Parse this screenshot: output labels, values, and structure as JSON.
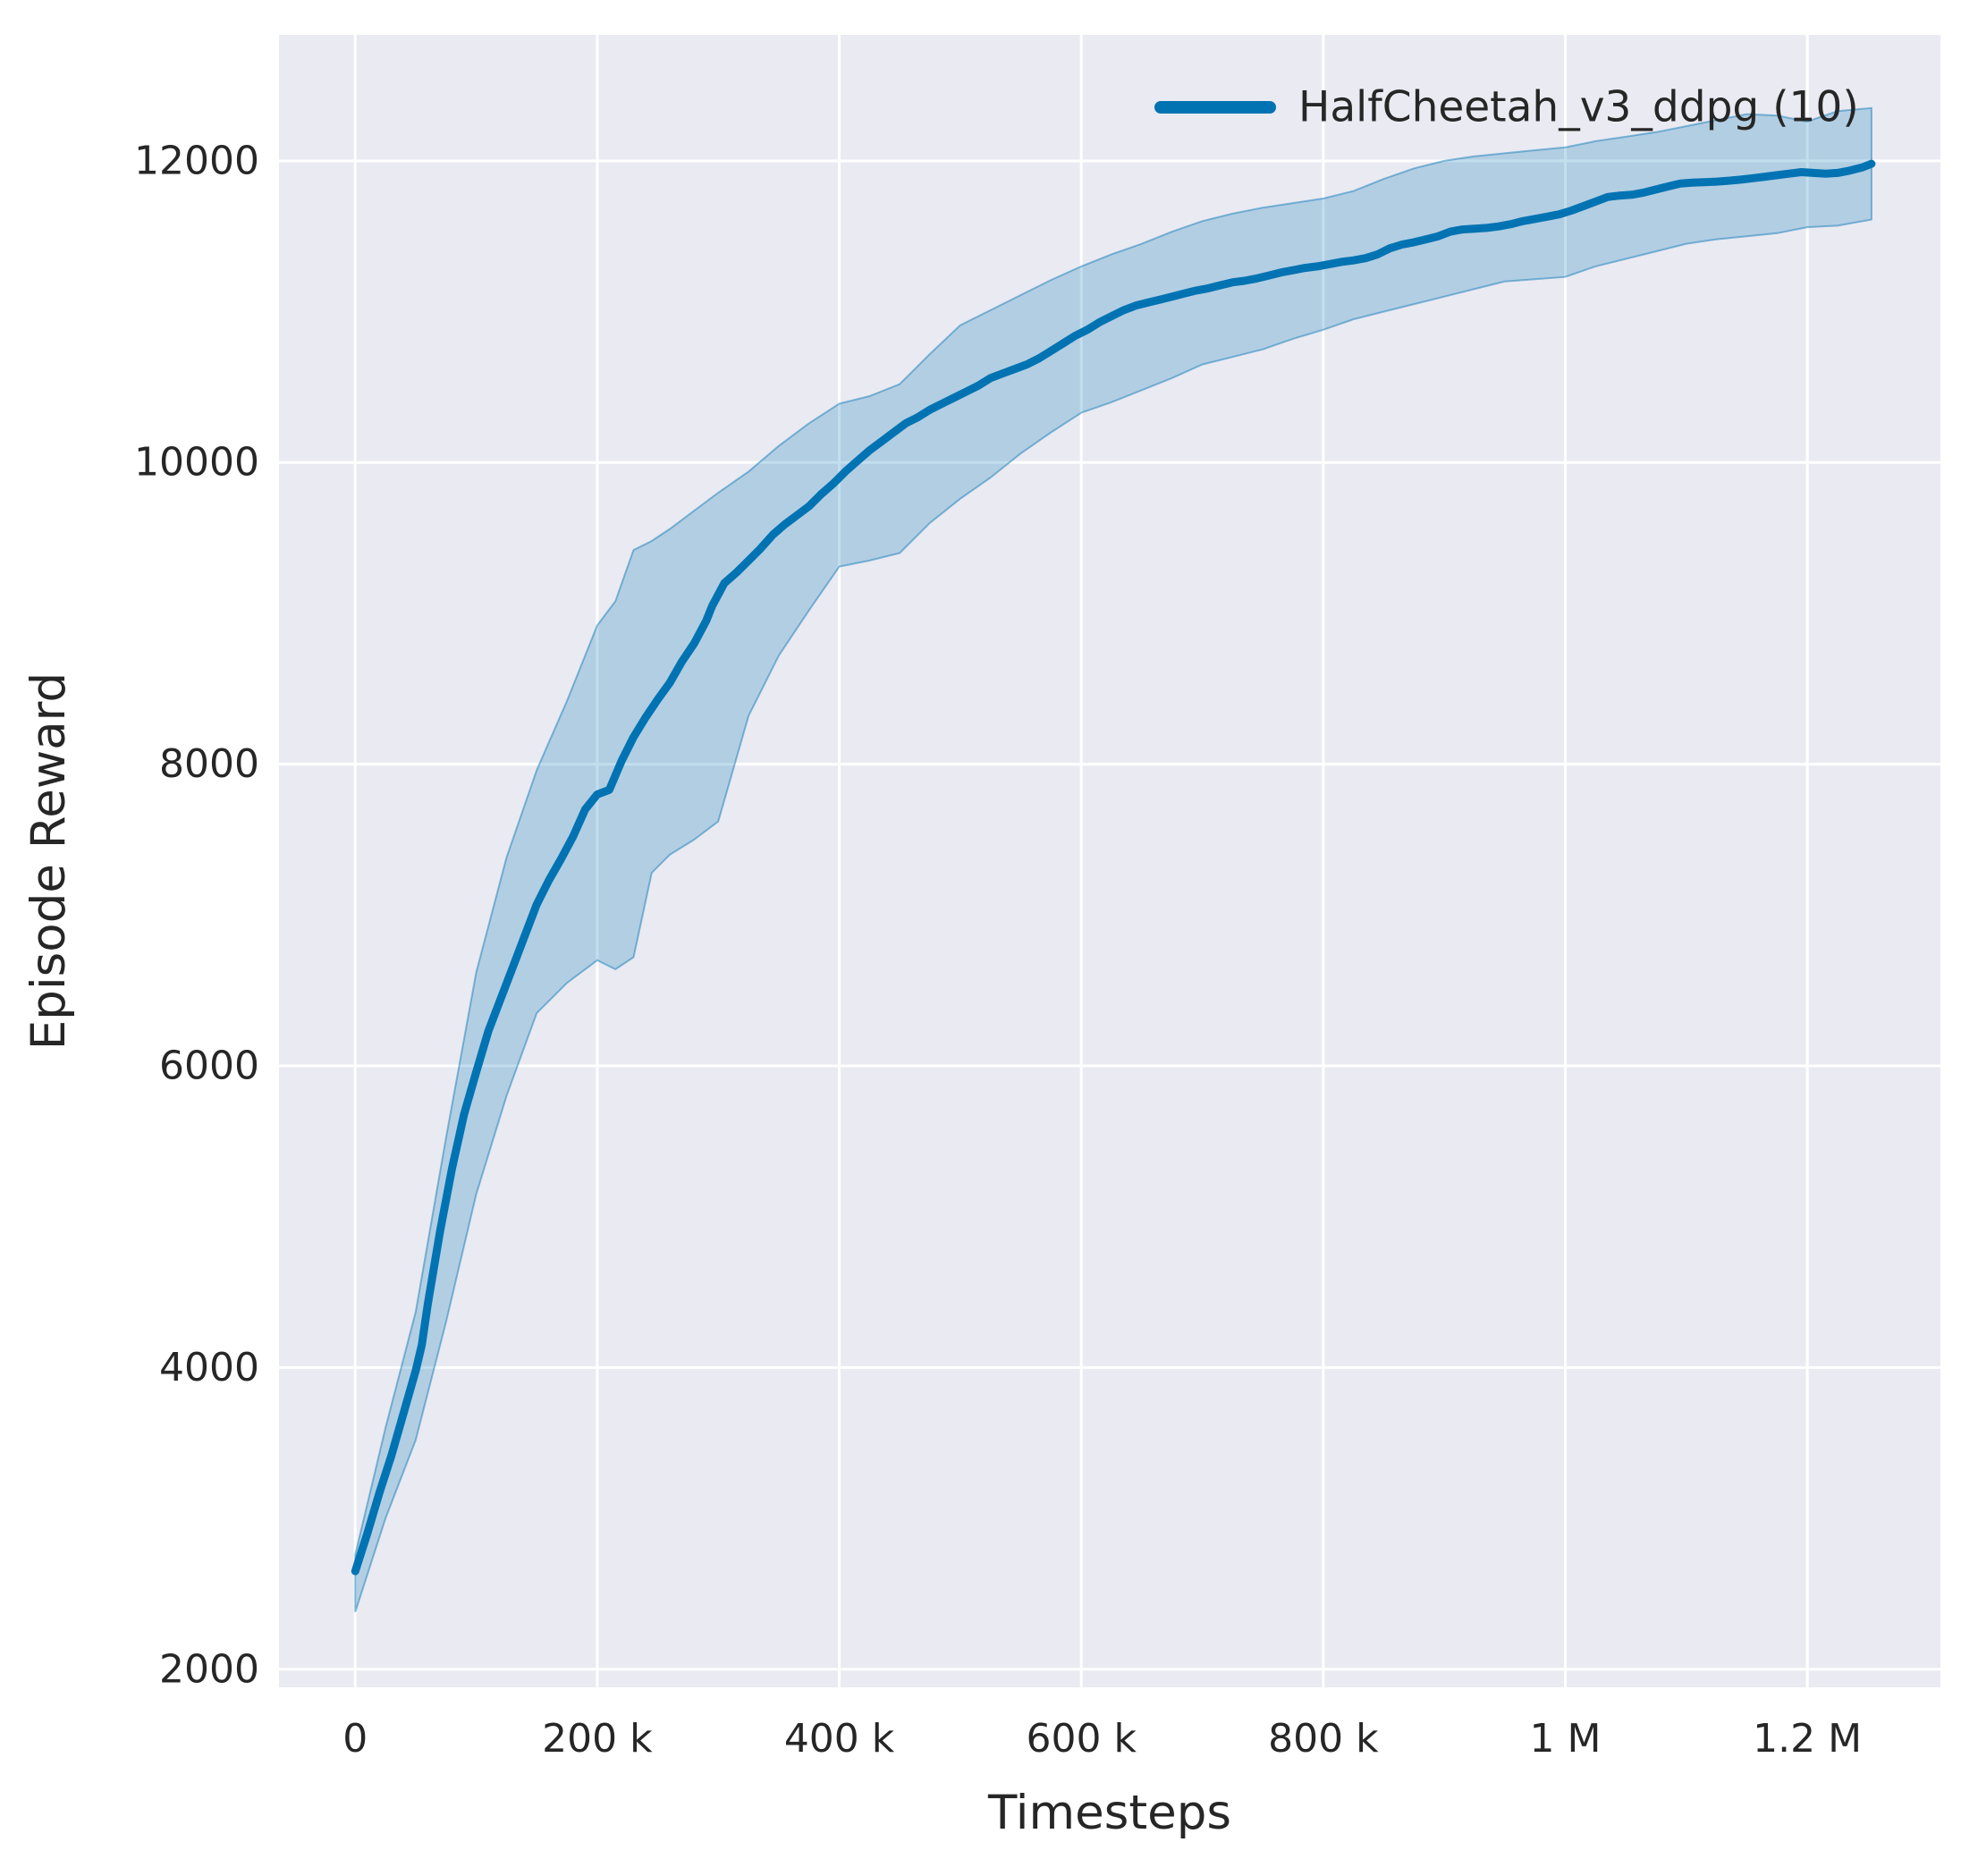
{
  "figure": {
    "background": "#ffffff",
    "plot_background": "#eaeaf2",
    "grid_color": "#ffffff",
    "text_color": "#262626"
  },
  "chart_data": {
    "type": "line",
    "title": "",
    "xlabel": "Timesteps",
    "ylabel": "Episode Reward",
    "grid": true,
    "legend_position": "upper right",
    "xlim": [
      -63000,
      1310000
    ],
    "ylim": [
      1880,
      12835
    ],
    "x_ticks": {
      "values": [
        0,
        200000,
        400000,
        600000,
        800000,
        1000000,
        1200000
      ],
      "labels": [
        "0",
        "200 k",
        "400 k",
        "600 k",
        "800 k",
        "1 M",
        "1.2 M"
      ]
    },
    "y_ticks": {
      "values": [
        2000,
        4000,
        6000,
        8000,
        10000,
        12000
      ],
      "labels": [
        "2000",
        "4000",
        "6000",
        "8000",
        "10000",
        "12000"
      ]
    },
    "series": [
      {
        "name": "HalfCheetah_v3_ddpg (10)",
        "color": "#0173b2",
        "line_width": 9,
        "x": [
          0,
          10000,
          20000,
          30000,
          40000,
          50000,
          55000,
          60000,
          70000,
          80000,
          90000,
          100000,
          110000,
          120000,
          130000,
          140000,
          150000,
          160000,
          170000,
          180000,
          190000,
          200000,
          210000,
          220000,
          230000,
          240000,
          250000,
          260000,
          270000,
          280000,
          290000,
          295000,
          305000,
          315000,
          325000,
          335000,
          345000,
          355000,
          365000,
          375000,
          385000,
          395000,
          405000,
          415000,
          425000,
          435000,
          445000,
          455000,
          465000,
          475000,
          485000,
          495000,
          505000,
          515000,
          525000,
          535000,
          545000,
          555000,
          565000,
          575000,
          585000,
          595000,
          605000,
          615000,
          625000,
          635000,
          645000,
          655000,
          665000,
          675000,
          685000,
          695000,
          705000,
          715000,
          725000,
          735000,
          745000,
          755000,
          765000,
          775000,
          785000,
          795000,
          805000,
          815000,
          825000,
          835000,
          845000,
          855000,
          865000,
          875000,
          885000,
          895000,
          905000,
          915000,
          925000,
          935000,
          945000,
          955000,
          965000,
          975000,
          985000,
          995000,
          1005000,
          1015000,
          1025000,
          1035000,
          1045000,
          1055000,
          1065000,
          1075000,
          1085000,
          1095000,
          1105000,
          1115000,
          1125000,
          1135000,
          1145000,
          1155000,
          1165000,
          1175000,
          1185000,
          1195000,
          1205000,
          1215000,
          1225000,
          1235000,
          1245000,
          1253000
        ],
        "y": [
          2650,
          2900,
          3170,
          3420,
          3700,
          3980,
          4150,
          4420,
          4900,
          5320,
          5680,
          5960,
          6230,
          6440,
          6650,
          6860,
          7070,
          7230,
          7370,
          7520,
          7700,
          7800,
          7830,
          8020,
          8180,
          8310,
          8430,
          8540,
          8680,
          8800,
          8950,
          9050,
          9200,
          9270,
          9350,
          9430,
          9520,
          9590,
          9650,
          9710,
          9790,
          9860,
          9940,
          10010,
          10080,
          10140,
          10200,
          10260,
          10300,
          10350,
          10390,
          10430,
          10470,
          10510,
          10560,
          10590,
          10620,
          10650,
          10690,
          10740,
          10790,
          10840,
          10880,
          10930,
          10970,
          11010,
          11040,
          11060,
          11080,
          11100,
          11120,
          11140,
          11155,
          11175,
          11195,
          11205,
          11220,
          11240,
          11260,
          11275,
          11290,
          11300,
          11315,
          11330,
          11340,
          11355,
          11380,
          11420,
          11445,
          11460,
          11480,
          11500,
          11530,
          11545,
          11550,
          11555,
          11565,
          11580,
          11600,
          11615,
          11630,
          11645,
          11670,
          11700,
          11730,
          11760,
          11770,
          11775,
          11790,
          11810,
          11830,
          11850,
          11855,
          11858,
          11862,
          11868,
          11875,
          11885,
          11895,
          11905,
          11915,
          11925,
          11920,
          11915,
          11920,
          11935,
          11955,
          11980
        ],
        "band": {
          "fill": "rgba(1,115,178,0.24)",
          "edge": "rgba(1,115,178,0.45)",
          "x": [
            0,
            25000,
            50000,
            75000,
            100000,
            125000,
            150000,
            175000,
            200000,
            215000,
            230000,
            245000,
            260000,
            280000,
            300000,
            325000,
            350000,
            375000,
            400000,
            425000,
            450000,
            475000,
            500000,
            525000,
            550000,
            575000,
            600000,
            625000,
            650000,
            675000,
            700000,
            725000,
            750000,
            775000,
            800000,
            825000,
            850000,
            875000,
            900000,
            925000,
            950000,
            975000,
            1000000,
            1025000,
            1050000,
            1075000,
            1100000,
            1125000,
            1150000,
            1175000,
            1200000,
            1225000,
            1253000
          ],
          "low": [
            2380,
            3000,
            3520,
            4300,
            5150,
            5800,
            6350,
            6550,
            6700,
            6640,
            6720,
            7280,
            7400,
            7500,
            7620,
            8320,
            8720,
            9020,
            9310,
            9350,
            9400,
            9600,
            9760,
            9900,
            10060,
            10200,
            10330,
            10400,
            10480,
            10560,
            10650,
            10700,
            10750,
            10820,
            10880,
            10950,
            11000,
            11050,
            11100,
            11150,
            11200,
            11215,
            11230,
            11300,
            11350,
            11400,
            11450,
            11480,
            11500,
            11520,
            11560,
            11570,
            11610
          ],
          "high": [
            2760,
            3600,
            4370,
            5520,
            6620,
            7380,
            7960,
            8420,
            8920,
            9080,
            9420,
            9480,
            9560,
            9680,
            9800,
            9940,
            10110,
            10260,
            10390,
            10440,
            10520,
            10720,
            10910,
            11010,
            11110,
            11210,
            11300,
            11380,
            11450,
            11530,
            11600,
            11650,
            11690,
            11720,
            11750,
            11800,
            11880,
            11950,
            12000,
            12030,
            12050,
            12070,
            12090,
            12130,
            12160,
            12190,
            12230,
            12270,
            12310,
            12300,
            12260,
            12330,
            12350
          ]
        }
      }
    ]
  },
  "legend": {
    "entries": [
      {
        "label": "HalfCheetah_v3_ddpg (10)",
        "color": "#0173b2"
      }
    ]
  },
  "axis": {
    "x_label": "Timesteps",
    "y_label": "Episode Reward"
  }
}
